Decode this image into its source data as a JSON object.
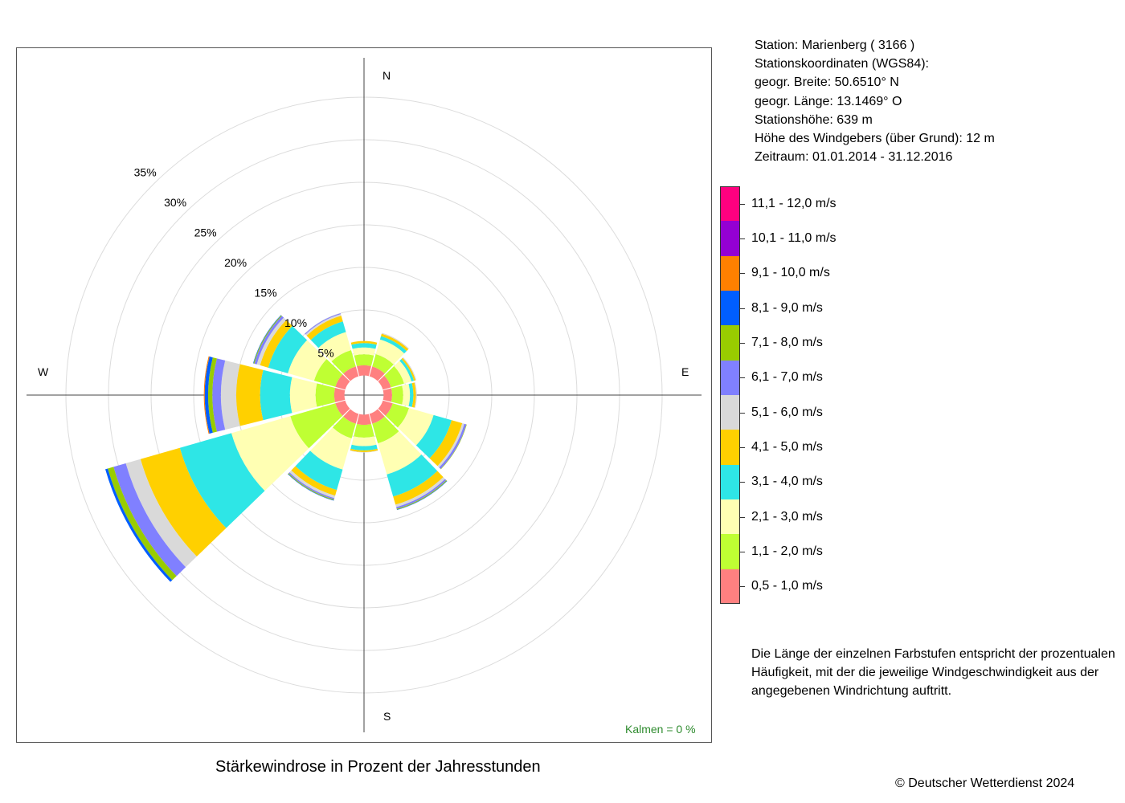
{
  "station": {
    "line1": "Station:  Marienberg  ( 3166 )",
    "line2": "Stationskoordinaten (WGS84):",
    "line3": "geogr. Breite: 50.6510° N",
    "line4": "geogr. Länge: 13.1469° O",
    "line5": "Stationshöhe: 639 m",
    "line6": "Höhe des Windgebers (über Grund): 12 m",
    "line7": "Zeitraum: 01.01.2014 - 31.12.2016"
  },
  "legend": [
    {
      "label": "11,1 - 12,0 m/s",
      "color": "#ff007f"
    },
    {
      "label": "10,1 - 11,0 m/s",
      "color": "#9400d3"
    },
    {
      "label": "9,1 - 10,0 m/s",
      "color": "#ff8000"
    },
    {
      "label": "8,1 - 9,0 m/s",
      "color": "#005eff"
    },
    {
      "label": "7,1 - 8,0 m/s",
      "color": "#99cc00"
    },
    {
      "label": "6,1 - 7,0 m/s",
      "color": "#8080ff"
    },
    {
      "label": "5,1 - 6,0 m/s",
      "color": "#d9d9d9"
    },
    {
      "label": "4,1 - 5,0 m/s",
      "color": "#ffd000"
    },
    {
      "label": "3,1 - 4,0 m/s",
      "color": "#2ee6e6"
    },
    {
      "label": "2,1 - 3,0 m/s",
      "color": "#ffffb3"
    },
    {
      "label": "1,1 - 2,0 m/s",
      "color": "#bfff33"
    },
    {
      "label": "0,5 - 1,0 m/s",
      "color": "#ff8080"
    }
  ],
  "description": "Die Länge der einzelnen Farbstufen entspricht der prozentualen Häufigkeit, mit der die jeweilige Windgeschwindigkeit aus der angegebenen Windrichtung auftritt.",
  "title": "Stärkewindrose in Prozent der Jahresstunden",
  "copyright": "© Deutscher Wetterdienst  2024",
  "calm": "Kalmen  =  0 %",
  "directions": {
    "n": "N",
    "e": "E",
    "s": "S",
    "w": "W"
  },
  "chart_data": {
    "type": "windrose",
    "title": "Stärkewindrose in Prozent der Jahresstunden",
    "unit": "%",
    "ring_values": [
      5,
      10,
      15,
      20,
      25,
      30,
      35
    ],
    "ring_labels": [
      "5%",
      "10%",
      "15%",
      "20%",
      "25%",
      "30%",
      "35%"
    ],
    "sector_width_deg": 30,
    "center_hole_percent": 2.3,
    "speed_classes": [
      "0,5 - 1,0 m/s",
      "1,1 - 2,0 m/s",
      "2,1 - 3,0 m/s",
      "3,1 - 4,0 m/s",
      "4,1 - 5,0 m/s",
      "5,1 - 6,0 m/s",
      "6,1 - 7,0 m/s",
      "7,1 - 8,0 m/s",
      "8,1 - 9,0 m/s",
      "9,1 - 10,0 m/s",
      "10,1 - 11,0 m/s",
      "11,1 - 12,0 m/s"
    ],
    "sectors": [
      {
        "direction_deg": 0,
        "values": [
          1.2,
          1.3,
          0.8,
          0.5,
          0.25,
          0,
          0,
          0,
          0,
          0,
          0,
          0
        ]
      },
      {
        "direction_deg": 30,
        "values": [
          1.2,
          1.5,
          1.8,
          0.4,
          0.3,
          0.1,
          0,
          0,
          0,
          0,
          0,
          0
        ]
      },
      {
        "direction_deg": 60,
        "values": [
          1.0,
          1.6,
          0.9,
          0.3,
          0.2,
          0.1,
          0,
          0,
          0,
          0,
          0,
          0
        ]
      },
      {
        "direction_deg": 90,
        "values": [
          1.0,
          1.3,
          0.8,
          0.4,
          0.3,
          0.1,
          0,
          0,
          0,
          0,
          0,
          0
        ]
      },
      {
        "direction_deg": 120,
        "values": [
          1.2,
          2.0,
          3.0,
          2.2,
          1.3,
          0.25,
          0.25,
          0.05,
          0,
          0,
          0,
          0
        ]
      },
      {
        "direction_deg": 150,
        "values": [
          1.2,
          2.4,
          3.8,
          2.7,
          1.0,
          0.3,
          0.2,
          0.1,
          0.05,
          0,
          0,
          0
        ]
      },
      {
        "direction_deg": 180,
        "values": [
          1.2,
          1.5,
          1.0,
          0.5,
          0.2,
          0.05,
          0,
          0,
          0,
          0,
          0,
          0
        ]
      },
      {
        "direction_deg": 210,
        "values": [
          1.2,
          1.8,
          3.8,
          2.5,
          0.7,
          0.3,
          0.15,
          0.1,
          0.05,
          0,
          0,
          0
        ]
      },
      {
        "direction_deg": 240,
        "values": [
          1.2,
          5.5,
          7.2,
          6.3,
          4.8,
          1.8,
          1.5,
          0.7,
          0.3,
          0,
          0,
          0
        ]
      },
      {
        "direction_deg": 270,
        "values": [
          1.2,
          2.2,
          3.0,
          3.5,
          2.8,
          1.8,
          1.0,
          0.5,
          0.4,
          0.1,
          0,
          0
        ]
      },
      {
        "direction_deg": 300,
        "values": [
          1.2,
          2.6,
          3.2,
          2.4,
          1.0,
          0.4,
          0.3,
          0.1,
          0.05,
          0,
          0,
          0
        ]
      },
      {
        "direction_deg": 330,
        "values": [
          1.2,
          2.0,
          2.2,
          1.3,
          0.7,
          0.2,
          0.1,
          0,
          0,
          0,
          0,
          0
        ]
      }
    ]
  }
}
